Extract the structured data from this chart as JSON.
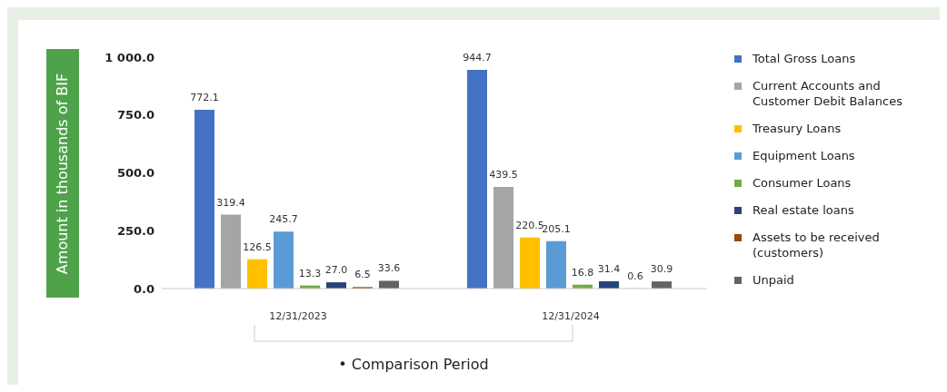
{
  "chart_data": {
    "type": "bar",
    "ylabel": "Amount in thousands of BIF",
    "xlabel": "• Comparison Period",
    "categories": [
      "12/31/2023",
      "12/31/2024"
    ],
    "series": [
      {
        "name": "Total Gross Loans",
        "color": "#4472c4",
        "values": [
          772.1,
          944.7
        ],
        "value_labels": [
          "772.1",
          "944.7"
        ]
      },
      {
        "name": "Current Accounts and Customer Debit Balances",
        "color": "#a5a5a5",
        "values": [
          319.4,
          439.5
        ],
        "value_labels": [
          "319.4",
          "439.5"
        ]
      },
      {
        "name": "Treasury Loans",
        "color": "#ffc000",
        "values": [
          126.5,
          220.5
        ],
        "value_labels": [
          "126.5",
          "220.5"
        ]
      },
      {
        "name": "Equipment Loans",
        "color": "#5b9bd5",
        "values": [
          245.7,
          205.1
        ],
        "value_labels": [
          "245.7",
          "205.1"
        ]
      },
      {
        "name": "Consumer Loans",
        "color": "#70ad47",
        "values": [
          13.3,
          16.8
        ],
        "value_labels": [
          "13.3",
          "16.8"
        ]
      },
      {
        "name": "Real estate loans",
        "color": "#264478",
        "values": [
          27.0,
          31.4
        ],
        "value_labels": [
          "27.0",
          "31.4"
        ]
      },
      {
        "name": "Assets to be received (customers)",
        "color": "#9e480e",
        "values": [
          6.5,
          0.6
        ],
        "value_labels": [
          "6.5",
          "0.6"
        ]
      },
      {
        "name": "Unpaid",
        "color": "#636363",
        "values": [
          33.6,
          30.9
        ],
        "value_labels": [
          "33.6",
          "30.9"
        ]
      }
    ],
    "ylim": [
      0,
      1000
    ],
    "yticks": [
      {
        "value": 0,
        "label": "0.0"
      },
      {
        "value": 250,
        "label": "250.0"
      },
      {
        "value": 500,
        "label": "500.0"
      },
      {
        "value": 750,
        "label": "750.0"
      },
      {
        "value": 1000,
        "label": "1 000.0"
      }
    ],
    "grid": false,
    "legend": "right"
  }
}
